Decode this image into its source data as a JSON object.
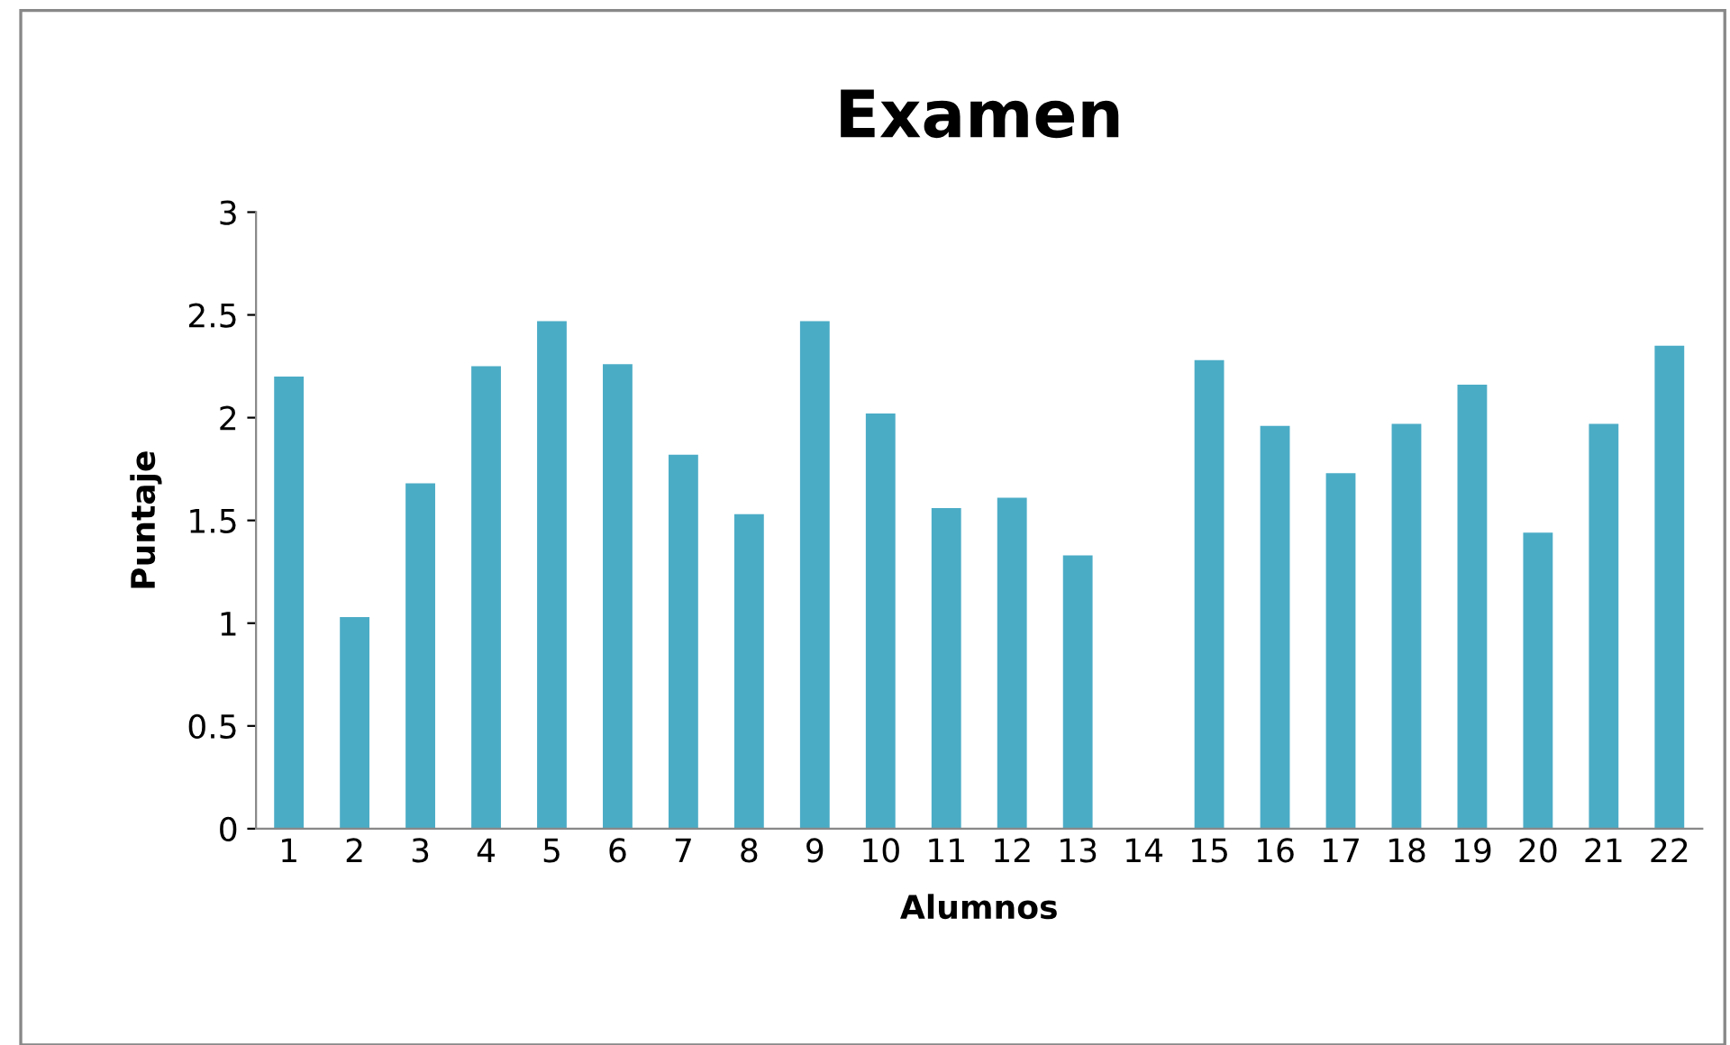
{
  "chart_data": {
    "type": "bar",
    "title": "Examen",
    "xlabel": "Alumnos",
    "ylabel": "Puntaje",
    "categories": [
      "1",
      "2",
      "3",
      "4",
      "5",
      "6",
      "7",
      "8",
      "9",
      "10",
      "11",
      "12",
      "13",
      "14",
      "15",
      "16",
      "17",
      "18",
      "19",
      "20",
      "21",
      "22"
    ],
    "values": [
      2.2,
      1.03,
      1.68,
      2.25,
      2.47,
      2.26,
      1.82,
      1.53,
      2.47,
      2.02,
      1.56,
      1.61,
      1.33,
      0,
      2.28,
      1.96,
      1.73,
      1.97,
      2.16,
      1.44,
      1.97,
      2.35
    ],
    "color": "#4bacc6",
    "ylim": [
      0,
      3
    ],
    "yticks": [
      0,
      0.5,
      1,
      1.5,
      2,
      2.5,
      3
    ],
    "grid": false,
    "legend": false
  }
}
